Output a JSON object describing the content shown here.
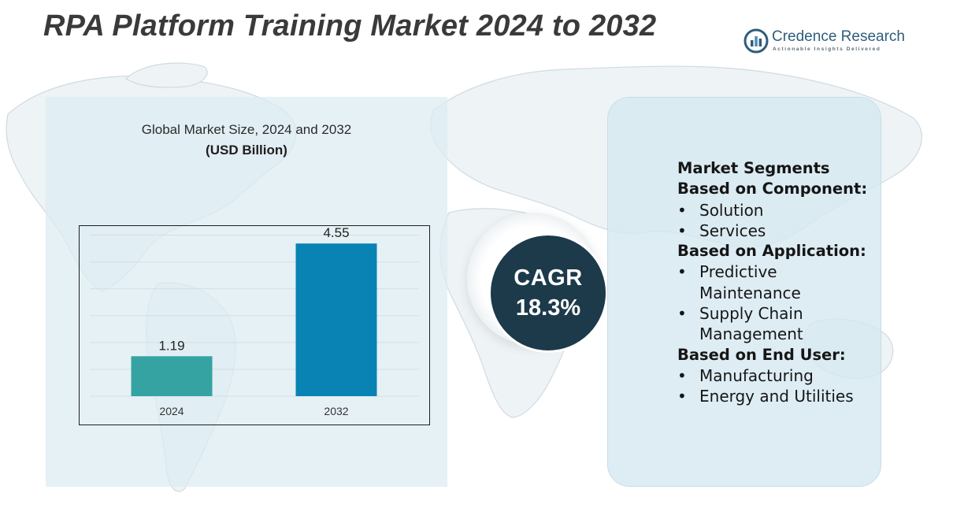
{
  "header": {
    "title": "RPA Platform Training Market 2024 to 2032"
  },
  "brand": {
    "name": "Credence Research",
    "tagline": "Actionable Insights Delivered"
  },
  "chart_panel": {
    "caption": "Global Market Size, 2024 and 2032",
    "unit": "(USD Billion)"
  },
  "chart_data": {
    "type": "bar",
    "title": "Global Market Size, 2024 and 2032",
    "ylabel": "(USD Billion)",
    "xlabel": "",
    "categories": [
      "2024",
      "2032"
    ],
    "values": [
      1.19,
      4.55
    ],
    "value_labels": [
      "1.19",
      "4.55"
    ],
    "colors": [
      "#35a3a1",
      "#0883b4"
    ],
    "ylim": [
      0,
      5
    ],
    "grid": true,
    "legend": "none"
  },
  "cagr": {
    "label": "CAGR",
    "value": "18.3%"
  },
  "segments": {
    "title": "Market Segments",
    "groups": [
      {
        "header": "Based on Component:",
        "items": [
          "Solution",
          "Services"
        ]
      },
      {
        "header": "Based on Application:",
        "items": [
          "Predictive Maintenance",
          "Supply Chain Management"
        ]
      },
      {
        "header": "Based on End User:",
        "items": [
          "Manufacturing",
          "Energy and Utilities"
        ]
      }
    ],
    "bullet": "•"
  }
}
